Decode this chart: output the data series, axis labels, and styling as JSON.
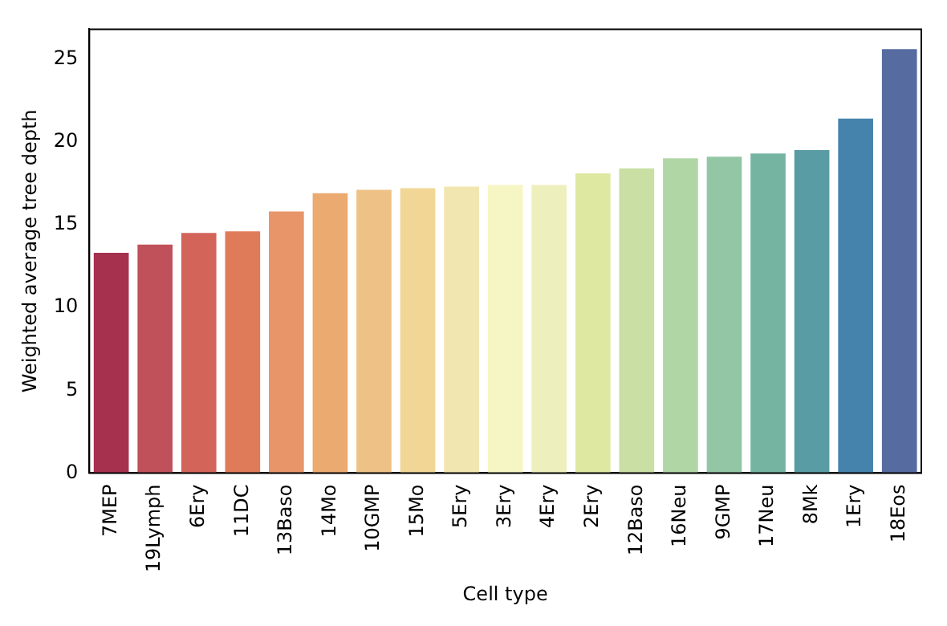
{
  "chart_data": {
    "type": "bar",
    "xlabel": "Cell type",
    "ylabel": "Weighted average tree depth",
    "categories": [
      "7MEP",
      "19Lymph",
      "6Ery",
      "11DC",
      "13Baso",
      "14Mo",
      "10GMP",
      "15Mo",
      "5Ery",
      "3Ery",
      "4Ery",
      "2Ery",
      "12Baso",
      "16Neu",
      "9GMP",
      "17Neu",
      "8Mk",
      "1Ery",
      "18Eos"
    ],
    "values": [
      13.3,
      13.8,
      14.5,
      14.6,
      15.8,
      16.9,
      17.1,
      17.2,
      17.3,
      17.4,
      17.4,
      18.1,
      18.4,
      19.0,
      19.1,
      19.3,
      19.5,
      21.4,
      25.6
    ],
    "colors": [
      "#a6314f",
      "#c0505a",
      "#d3645a",
      "#e07b5a",
      "#e8956a",
      "#eaaa70",
      "#eec287",
      "#f1d696",
      "#f2e6b0",
      "#f6f5c4",
      "#edefbc",
      "#dee8a1",
      "#c9dfa4",
      "#b0d6a6",
      "#93c6a4",
      "#74b4a1",
      "#5a9ca3",
      "#4583ad",
      "#566ca0"
    ],
    "ylim": [
      0,
      26.8
    ],
    "yticks": [
      0,
      5,
      10,
      15,
      20,
      25
    ],
    "grid": false,
    "legend": false
  }
}
